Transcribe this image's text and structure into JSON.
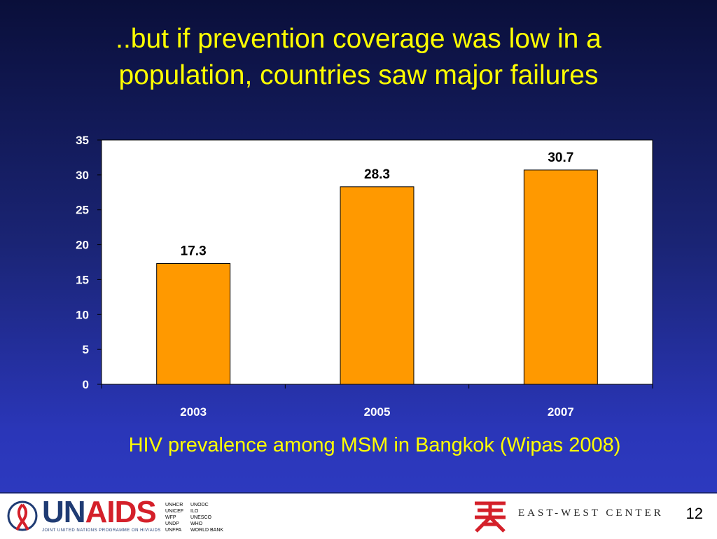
{
  "slide": {
    "title_line1": "..but if prevention coverage was low in a",
    "title_line2": "population, countries saw major failures",
    "caption": "HIV prevalence among MSM in Bangkok (Wipas 2008)",
    "page_number": "12"
  },
  "footer": {
    "unaids_brand_un": "UN",
    "unaids_brand_aids": "AIDS",
    "unaids_subtitle": "JOINT UNITED NATIONS PROGRAMME ON HIV/AIDS",
    "agencies": [
      "UNHCR",
      "UNODC",
      "UNICEF",
      "ILO",
      "WFP",
      "UNESCO",
      "UNDP",
      "WHO",
      "UNFPA",
      "WORLD BANK"
    ],
    "ewc_name": "EAST-WEST CENTER"
  },
  "colors": {
    "bar": "#ff9900",
    "title": "#ffff00",
    "plot_bg": "#ffffff"
  },
  "chart_data": {
    "type": "bar",
    "categories": [
      "2003",
      "2005",
      "2007"
    ],
    "values": [
      17.3,
      28.3,
      30.7
    ],
    "data_labels": [
      "17.3",
      "28.3",
      "30.7"
    ],
    "yticks": [
      "0",
      "5",
      "10",
      "15",
      "20",
      "25",
      "30",
      "35"
    ],
    "ylim": [
      0,
      35
    ],
    "grid": false,
    "legend": "none"
  }
}
